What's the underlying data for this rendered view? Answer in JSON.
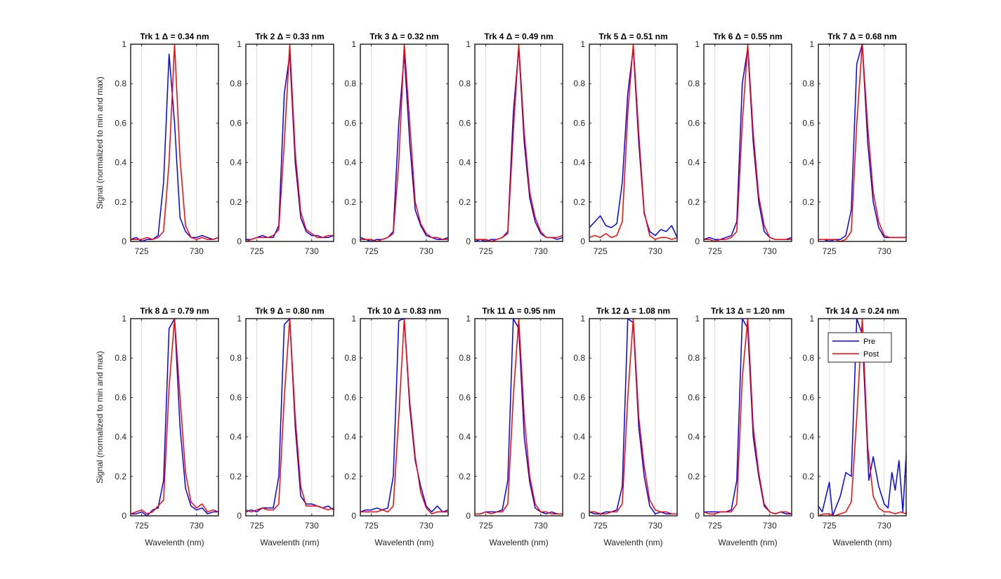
{
  "chart_data": {
    "type": "line",
    "grid": "x",
    "common": {
      "xlabel": "Wavelenth (nm)",
      "ylabel": "Signal (normalized to min and max)",
      "xlim": [
        724,
        732
      ],
      "ylim": [
        0,
        1
      ],
      "xticks": [
        725,
        730
      ],
      "yticks": [
        0,
        0.2,
        0.4,
        0.6,
        0.8,
        1
      ],
      "ytick_labels": [
        "0",
        "0.2",
        "0.4",
        "0.6",
        "0.8",
        "1"
      ],
      "series_names": [
        "Pre",
        "Post"
      ],
      "series_colors": [
        "#0000ff",
        "#ff0000"
      ],
      "legend": "top-right (Trk 14 panel)"
    },
    "x": [
      724.0,
      724.5,
      725.0,
      725.5,
      726.0,
      726.5,
      727.0,
      727.5,
      728.0,
      728.5,
      729.0,
      729.5,
      730.0,
      730.5,
      731.0,
      731.5,
      732.0
    ],
    "panels": [
      {
        "title": "Trk 1 Δ = 0.34 nm",
        "pre": [
          0.01,
          0.02,
          0.0,
          0.01,
          0.01,
          0.03,
          0.3,
          0.95,
          0.6,
          0.12,
          0.05,
          0.02,
          0.02,
          0.03,
          0.02,
          0.01,
          0.02
        ],
        "post": [
          0.01,
          0.01,
          0.01,
          0.02,
          0.01,
          0.02,
          0.05,
          0.4,
          1.0,
          0.42,
          0.08,
          0.02,
          0.01,
          0.02,
          0.01,
          0.01,
          0.02
        ]
      },
      {
        "title": "Trk 2 Δ = 0.33 nm",
        "pre": [
          0.01,
          0.01,
          0.02,
          0.03,
          0.02,
          0.02,
          0.08,
          0.75,
          0.95,
          0.4,
          0.12,
          0.05,
          0.03,
          0.03,
          0.02,
          0.02,
          0.03
        ],
        "post": [
          0.0,
          0.01,
          0.02,
          0.02,
          0.02,
          0.03,
          0.06,
          0.5,
          1.0,
          0.45,
          0.15,
          0.06,
          0.04,
          0.02,
          0.02,
          0.03,
          0.03
        ]
      },
      {
        "title": "Trk 3 Δ = 0.32 nm",
        "pre": [
          0.02,
          0.01,
          0.0,
          0.01,
          0.01,
          0.02,
          0.05,
          0.6,
          0.95,
          0.5,
          0.16,
          0.08,
          0.03,
          0.02,
          0.01,
          0.01,
          0.02
        ],
        "post": [
          0.01,
          0.01,
          0.01,
          0.0,
          0.01,
          0.02,
          0.04,
          0.4,
          1.0,
          0.6,
          0.2,
          0.09,
          0.04,
          0.02,
          0.02,
          0.01,
          0.01
        ]
      },
      {
        "title": "Trk 4 Δ = 0.49 nm",
        "pre": [
          0.0,
          0.01,
          0.0,
          0.01,
          0.01,
          0.02,
          0.05,
          0.65,
          0.98,
          0.5,
          0.22,
          0.1,
          0.04,
          0.02,
          0.02,
          0.01,
          0.02
        ],
        "post": [
          0.01,
          0.01,
          0.01,
          0.0,
          0.01,
          0.02,
          0.04,
          0.55,
          1.0,
          0.55,
          0.25,
          0.12,
          0.05,
          0.02,
          0.02,
          0.02,
          0.03
        ]
      },
      {
        "title": "Trk 5 Δ = 0.51 nm",
        "pre": [
          0.07,
          0.1,
          0.13,
          0.08,
          0.07,
          0.09,
          0.3,
          0.75,
          0.98,
          0.5,
          0.14,
          0.05,
          0.03,
          0.06,
          0.05,
          0.08,
          0.02
        ],
        "post": [
          0.02,
          0.03,
          0.02,
          0.04,
          0.02,
          0.03,
          0.1,
          0.65,
          1.0,
          0.55,
          0.15,
          0.03,
          0.01,
          0.02,
          0.02,
          0.01,
          0.02
        ]
      },
      {
        "title": "Trk 6 Δ = 0.55 nm",
        "pre": [
          0.01,
          0.02,
          0.01,
          0.01,
          0.02,
          0.03,
          0.1,
          0.8,
          0.98,
          0.5,
          0.2,
          0.05,
          0.02,
          0.01,
          0.01,
          0.01,
          0.02
        ],
        "post": [
          0.01,
          0.01,
          0.0,
          0.01,
          0.01,
          0.02,
          0.05,
          0.6,
          1.0,
          0.55,
          0.23,
          0.08,
          0.02,
          0.01,
          0.01,
          0.01,
          0.01
        ]
      },
      {
        "title": "Trk 7 Δ = 0.68 nm",
        "pre": [
          0.01,
          0.01,
          0.0,
          0.01,
          0.01,
          0.03,
          0.16,
          0.9,
          1.0,
          0.5,
          0.2,
          0.07,
          0.02,
          0.02,
          0.02,
          0.02,
          0.02
        ],
        "post": [
          0.01,
          0.01,
          0.01,
          0.01,
          0.0,
          0.01,
          0.05,
          0.6,
          1.0,
          0.58,
          0.25,
          0.1,
          0.03,
          0.02,
          0.02,
          0.02,
          0.02
        ]
      },
      {
        "title": "Trk 8 Δ = 0.79 nm",
        "pre": [
          0.01,
          0.01,
          0.02,
          0.0,
          0.03,
          0.04,
          0.18,
          0.95,
          1.0,
          0.45,
          0.14,
          0.05,
          0.03,
          0.04,
          0.01,
          0.02,
          0.02
        ],
        "post": [
          0.01,
          0.02,
          0.03,
          0.01,
          0.02,
          0.05,
          0.08,
          0.65,
          1.0,
          0.6,
          0.22,
          0.07,
          0.04,
          0.06,
          0.02,
          0.03,
          0.02
        ]
      },
      {
        "title": "Trk 9 Δ = 0.80 nm",
        "pre": [
          0.02,
          0.03,
          0.02,
          0.04,
          0.04,
          0.04,
          0.2,
          0.97,
          1.0,
          0.45,
          0.1,
          0.06,
          0.06,
          0.05,
          0.04,
          0.05,
          0.03
        ],
        "post": [
          0.03,
          0.02,
          0.03,
          0.04,
          0.03,
          0.03,
          0.06,
          0.6,
          1.0,
          0.5,
          0.15,
          0.05,
          0.05,
          0.05,
          0.04,
          0.03,
          0.04
        ]
      },
      {
        "title": "Trk 10 Δ = 0.83 nm",
        "pre": [
          0.02,
          0.03,
          0.03,
          0.04,
          0.03,
          0.04,
          0.2,
          0.99,
          1.0,
          0.55,
          0.28,
          0.15,
          0.05,
          0.02,
          0.05,
          0.02,
          0.03
        ],
        "post": [
          0.02,
          0.02,
          0.02,
          0.02,
          0.03,
          0.02,
          0.05,
          0.5,
          1.0,
          0.58,
          0.3,
          0.12,
          0.04,
          0.01,
          0.02,
          0.02,
          0.02
        ]
      },
      {
        "title": "Trk 11 Δ = 0.95 nm",
        "pre": [
          0.01,
          0.01,
          0.02,
          0.02,
          0.02,
          0.03,
          0.18,
          1.0,
          0.95,
          0.4,
          0.17,
          0.04,
          0.02,
          0.01,
          0.02,
          0.01,
          0.01
        ],
        "post": [
          0.01,
          0.01,
          0.02,
          0.01,
          0.02,
          0.02,
          0.06,
          0.6,
          1.0,
          0.5,
          0.2,
          0.06,
          0.02,
          0.02,
          0.01,
          0.01,
          0.01
        ]
      },
      {
        "title": "Trk 12 Δ = 1.08 nm",
        "pre": [
          0.02,
          0.01,
          0.01,
          0.02,
          0.02,
          0.03,
          0.15,
          1.0,
          0.98,
          0.45,
          0.2,
          0.05,
          0.01,
          0.02,
          0.01,
          0.01,
          0.01
        ],
        "post": [
          0.02,
          0.02,
          0.01,
          0.01,
          0.02,
          0.02,
          0.06,
          0.6,
          1.0,
          0.5,
          0.25,
          0.08,
          0.03,
          0.02,
          0.02,
          0.01,
          0.01
        ]
      },
      {
        "title": "Trk 13 Δ = 1.20 nm",
        "pre": [
          0.02,
          0.02,
          0.02,
          0.02,
          0.02,
          0.03,
          0.18,
          1.0,
          0.95,
          0.4,
          0.2,
          0.05,
          0.02,
          0.01,
          0.02,
          0.01,
          0.01
        ],
        "post": [
          0.02,
          0.01,
          0.01,
          0.02,
          0.02,
          0.02,
          0.06,
          0.7,
          1.0,
          0.45,
          0.22,
          0.06,
          0.02,
          0.01,
          0.02,
          0.02,
          0.01
        ]
      },
      {
        "title": "Trk 14 Δ = 0.24 nm",
        "pre": [
          0.05,
          0.02,
          0.17,
          0.0,
          0.1,
          0.22,
          0.2,
          1.0,
          0.92,
          0.18,
          0.3,
          0.15,
          0.06,
          0.04,
          0.22,
          0.13,
          0.28,
          0.02,
          0.31
        ],
        "post": [
          0.0,
          0.01,
          0.01,
          0.0,
          0.01,
          0.02,
          0.07,
          0.5,
          1.0,
          0.35,
          0.1,
          0.04,
          0.02,
          0.02,
          0.01,
          0.02,
          0.01,
          0.02
        ],
        "pre_x": [
          724.0,
          724.35,
          725.0,
          725.3,
          726.0,
          726.5,
          727.0,
          727.5,
          728.0,
          728.6,
          729.0,
          729.5,
          730.0,
          730.35,
          730.7,
          731.0,
          731.35,
          731.7,
          732.0
        ],
        "post_x": [
          724.0,
          724.5,
          725.0,
          725.5,
          726.0,
          726.5,
          727.0,
          727.5,
          728.0,
          728.5,
          729.0,
          729.5,
          730.0,
          730.5,
          731.0,
          731.5,
          732.0,
          731.999
        ],
        "legend": true
      }
    ]
  }
}
